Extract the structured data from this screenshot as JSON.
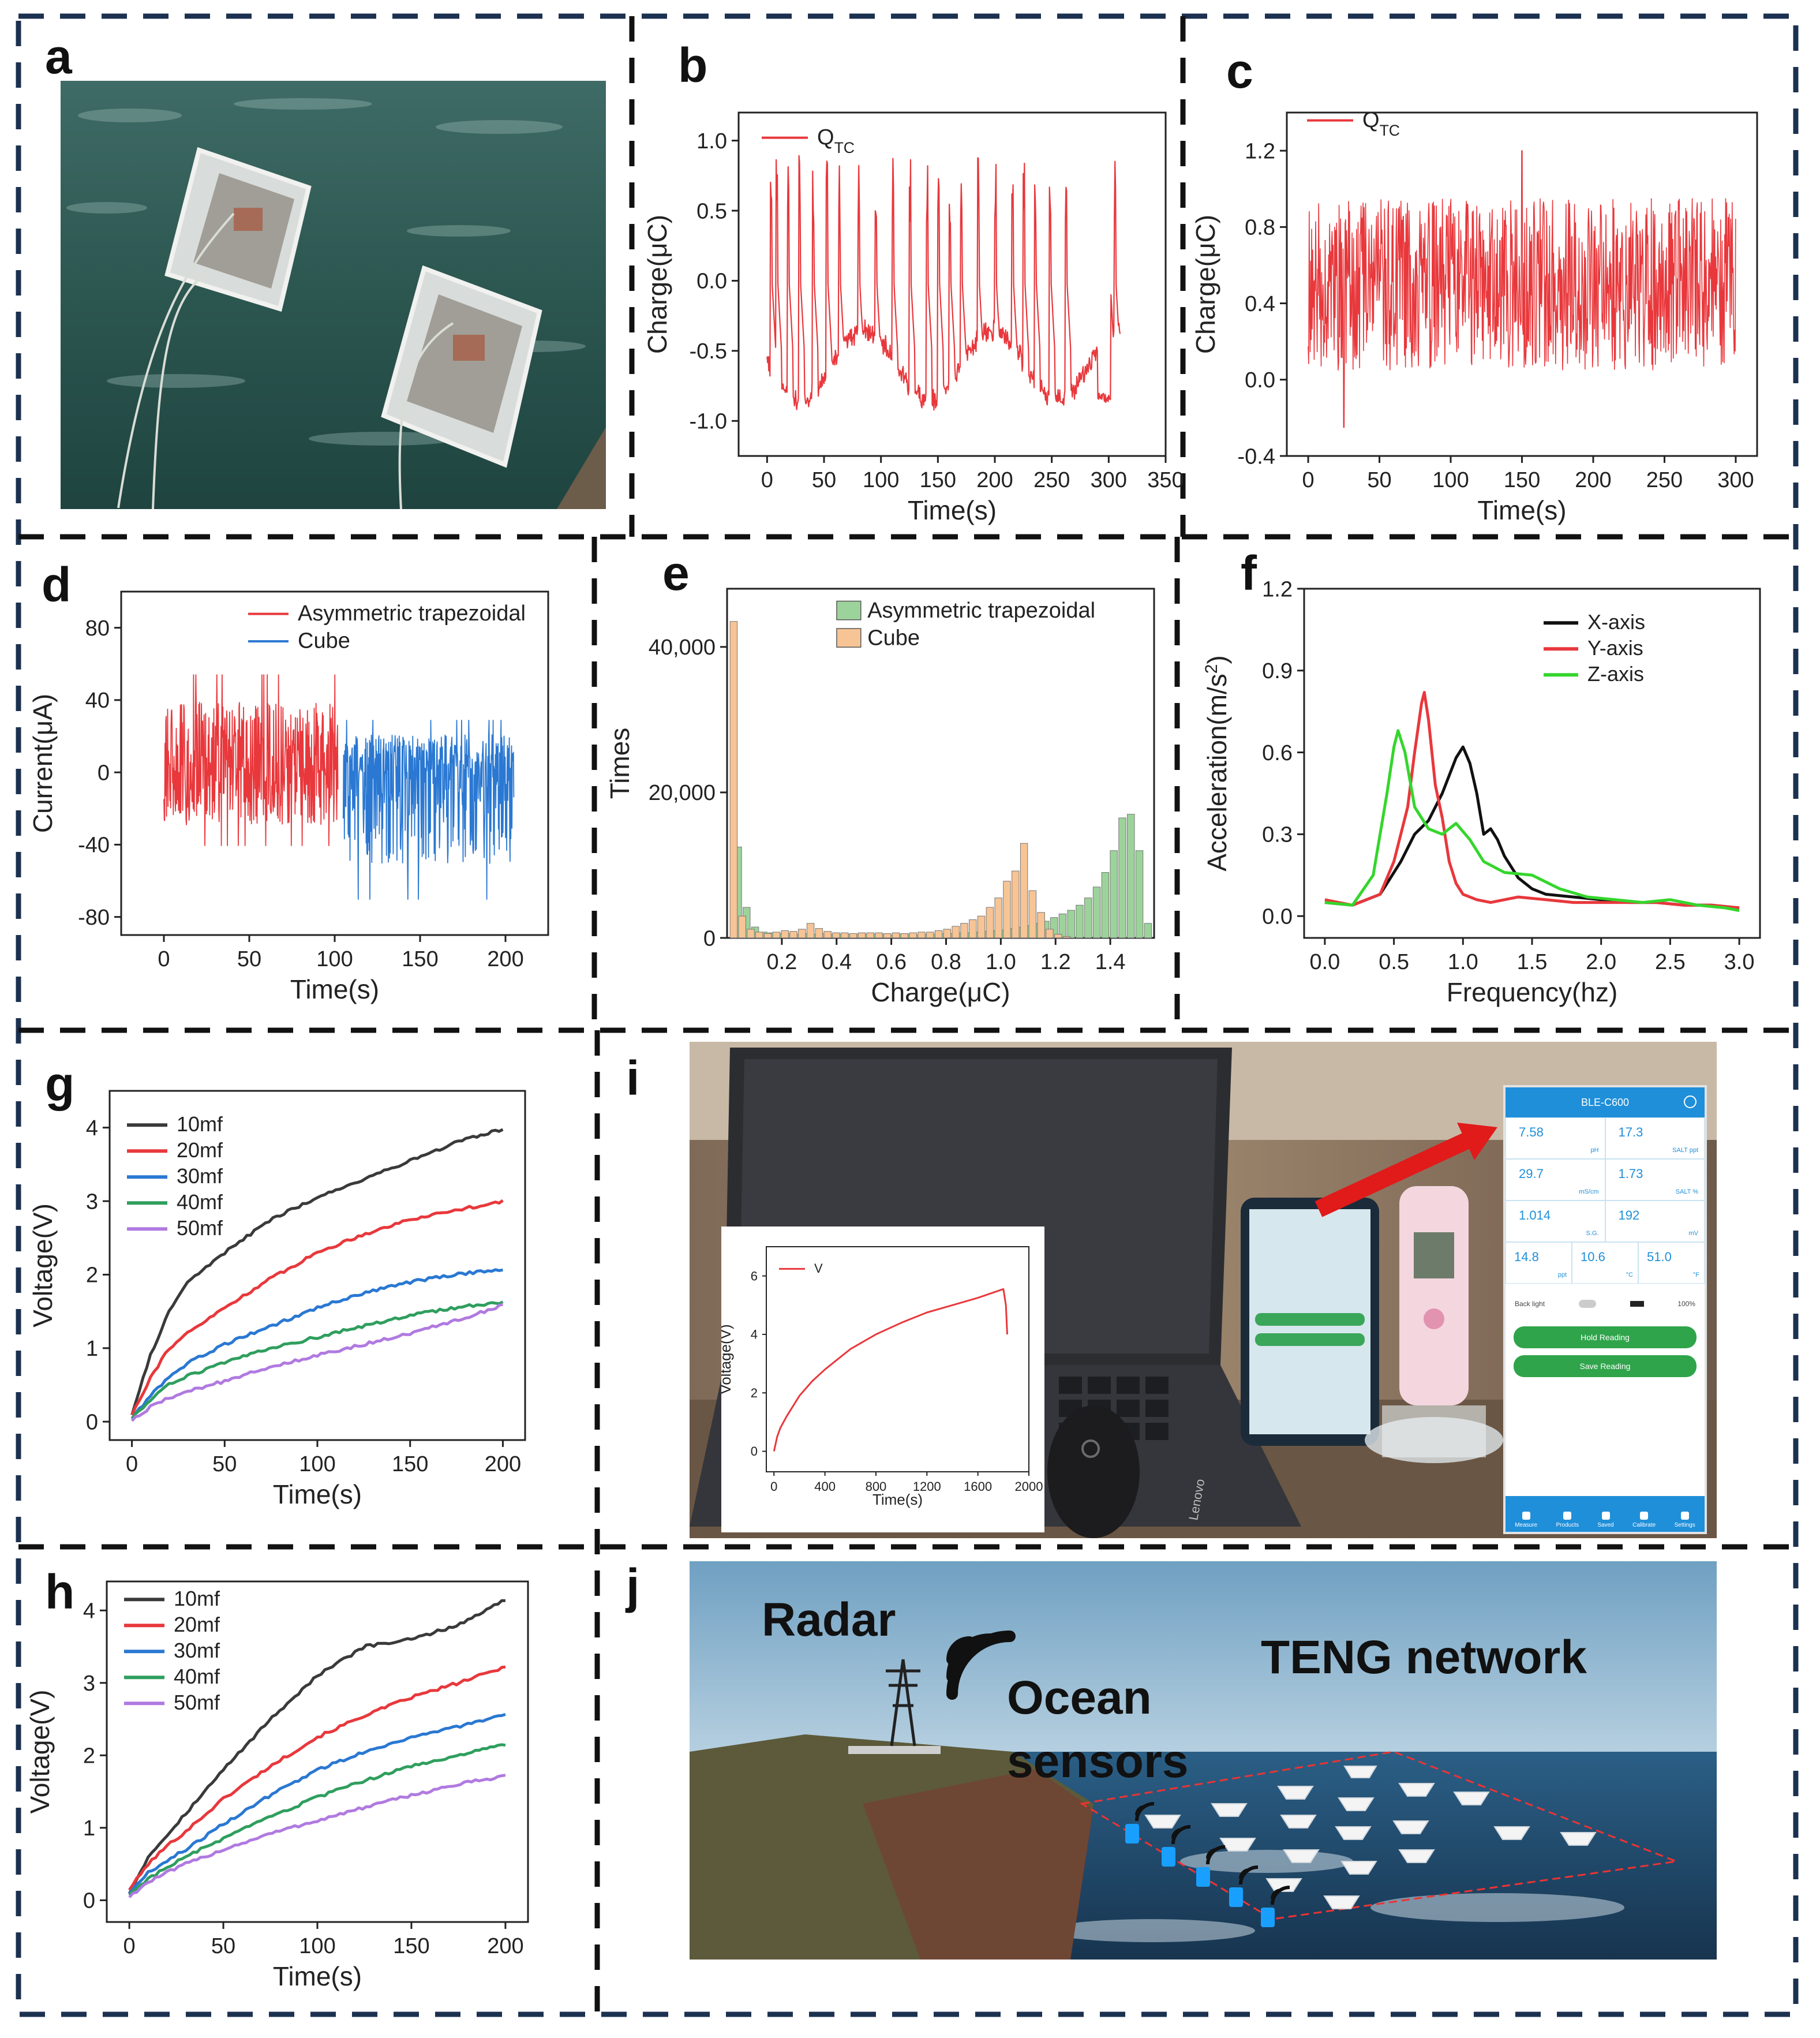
{
  "colors": {
    "frame": "#1c3150",
    "divider": "#111111",
    "red": "#e8383c",
    "blue": "#2a78d2",
    "black": "#222222",
    "green": "#34d62c",
    "darkgreen": "#2f9e5e",
    "purple": "#b07ae0",
    "hist_green": "#9cd39a",
    "hist_orange": "#f7c495"
  },
  "panels": {
    "a": {
      "label": "a"
    },
    "b": {
      "label": "b"
    },
    "c": {
      "label": "c"
    },
    "d": {
      "label": "d"
    },
    "e": {
      "label": "e"
    },
    "f": {
      "label": "f"
    },
    "g": {
      "label": "g"
    },
    "h": {
      "label": "h"
    },
    "i": {
      "label": "i"
    },
    "j": {
      "label": "j"
    }
  },
  "photo_a": {
    "description_icon": "two-teng-devices-floating-in-sea"
  },
  "photo_i": {
    "app_title": "BLE-C600",
    "readings": [
      {
        "value": "7.58",
        "unit": "pH"
      },
      {
        "value": "17.3",
        "unit": "SALT ppt"
      },
      {
        "value": "29.7",
        "unit": "mS/cm"
      },
      {
        "value": "1.73",
        "unit": "SALT %"
      },
      {
        "value": "1.014",
        "unit": "S.G."
      },
      {
        "value": "192",
        "unit": "mV"
      },
      {
        "value": "14.8",
        "unit": "ppt"
      },
      {
        "value": "10.6",
        "unit": "°C"
      },
      {
        "value": "51.0",
        "unit": "°F"
      }
    ],
    "backlight_label": "Back light",
    "battery": "100%",
    "hold_button": "Hold Reading",
    "save_button": "Save Reading",
    "tabs": [
      "Measure",
      "Products",
      "Saved",
      "Calibrate",
      "Settings"
    ],
    "laptop_brand": "Lenovo"
  },
  "photo_j": {
    "radar_label": "Radar",
    "sensors_label_1": "Ocean",
    "sensors_label_2": "sensors",
    "network_label": "TENG network"
  },
  "chart_data": [
    {
      "id": "b",
      "type": "line",
      "xlabel": "Time(s)",
      "ylabel": "Charge(μC)",
      "xlim": [
        -25,
        350
      ],
      "ylim": [
        -1.25,
        1.2
      ],
      "xticks": [
        0,
        50,
        100,
        150,
        200,
        250,
        300,
        350
      ],
      "yticks": [
        -1.0,
        -0.5,
        0.0,
        0.5,
        1.0
      ],
      "series": [
        {
          "name": "QTC",
          "color": "#e8383c",
          "description": "pulsed charge signal, baseline -0.4 to -0.9, spikes to ~0.9, 0-310 s"
        }
      ],
      "legend": "top-left"
    },
    {
      "id": "c",
      "type": "line",
      "xlabel": "Time(s)",
      "ylabel": "Charge(μC)",
      "xlim": [
        -15,
        315
      ],
      "ylim": [
        -0.4,
        1.4
      ],
      "xticks": [
        0,
        50,
        100,
        150,
        200,
        250,
        300
      ],
      "yticks": [
        -0.4,
        0.0,
        0.4,
        0.8,
        1.2
      ],
      "series": [
        {
          "name": "QTC",
          "color": "#e8383c",
          "description": "dense oscillation between ~0.0 and ~1.0, peak 1.2 near 150 s, 0-300 s"
        }
      ],
      "legend": "top-left"
    },
    {
      "id": "d",
      "type": "line",
      "xlabel": "Time(s)",
      "ylabel": "Current(μA)",
      "xlim": [
        -25,
        225
      ],
      "ylim": [
        -90,
        100
      ],
      "xticks": [
        0,
        50,
        100,
        150,
        200
      ],
      "yticks": [
        -80,
        -40,
        0,
        40,
        80
      ],
      "series": [
        {
          "name": "Asymmetric trapezoidal",
          "color": "#e8383c",
          "x_range": [
            0,
            102
          ],
          "amplitude": [
            -45,
            60
          ]
        },
        {
          "name": "Cube",
          "color": "#2a78d2",
          "x_range": [
            105,
            205
          ],
          "amplitude": [
            -78,
            32
          ]
        }
      ],
      "legend": "top-right"
    },
    {
      "id": "e",
      "type": "bar",
      "xlabel": "Charge(μC)",
      "ylabel": "Times",
      "xlim": [
        0.0,
        1.56
      ],
      "ylim": [
        0,
        48000
      ],
      "xticks": [
        0.2,
        0.4,
        0.6,
        0.8,
        1.0,
        1.2,
        1.4
      ],
      "xtick_labels": [
        "0.2",
        "0.4",
        "0.6",
        "0.8",
        "1.0",
        "1.2",
        "1.4"
      ],
      "yticks": [
        0,
        20000,
        40000
      ],
      "ytick_labels": [
        "0",
        "20,000",
        "40,000"
      ],
      "bin_width": 0.0312,
      "series": [
        {
          "name": "Asymmetric trapezoidal",
          "color": "#9cd39a",
          "bins": [
            0.04,
            0.0712,
            0.1024,
            0.1336,
            0.1648,
            0.196,
            0.2272,
            0.2584,
            0.2896,
            0.3208,
            0.352,
            0.3832,
            0.4144,
            0.4456,
            0.4768,
            0.508,
            0.5392,
            0.5704,
            0.6016,
            0.6328,
            0.664,
            0.6952,
            0.7264,
            0.7576,
            0.7888,
            0.82,
            0.8512,
            0.8824,
            0.9136,
            0.9448,
            0.976,
            1.0072,
            1.0384,
            1.0696,
            1.1008,
            1.132,
            1.1632,
            1.1944,
            1.2256,
            1.2568,
            1.288,
            1.3192,
            1.3504,
            1.3816,
            1.4128,
            1.444,
            1.4752,
            1.5064,
            1.5376
          ],
          "values": [
            12500,
            4200,
            1500,
            800,
            700,
            600,
            600,
            500,
            600,
            500,
            600,
            500,
            500,
            500,
            500,
            500,
            500,
            500,
            400,
            500,
            500,
            400,
            500,
            500,
            600,
            600,
            700,
            700,
            800,
            900,
            1000,
            1100,
            1300,
            1500,
            1700,
            2000,
            2300,
            2800,
            3300,
            3800,
            4500,
            5500,
            7000,
            9000,
            12000,
            16500,
            17000,
            12000,
            2000
          ]
        },
        {
          "name": "Cube",
          "color": "#f7c495",
          "bins": [
            0.024,
            0.0552,
            0.0864,
            0.1176,
            0.1488,
            0.18,
            0.2112,
            0.2424,
            0.2736,
            0.3048,
            0.336,
            0.3672,
            0.3984,
            0.4296,
            0.4608,
            0.492,
            0.5232,
            0.5544,
            0.5856,
            0.6168,
            0.648,
            0.6792,
            0.7104,
            0.7416,
            0.7728,
            0.804,
            0.8352,
            0.8664,
            0.8976,
            0.9288,
            0.96,
            0.9912,
            1.0224,
            1.0536,
            1.0848,
            1.116,
            1.1472,
            1.1784,
            1.2096,
            1.2408
          ],
          "values": [
            43500,
            3000,
            1200,
            800,
            600,
            800,
            1000,
            900,
            1200,
            2000,
            1300,
            900,
            700,
            700,
            600,
            700,
            700,
            700,
            600,
            700,
            600,
            700,
            800,
            800,
            1000,
            1200,
            1600,
            2000,
            2500,
            3000,
            4200,
            5500,
            7800,
            9200,
            13000,
            6500,
            3500,
            1200,
            500,
            200
          ]
        }
      ],
      "legend": "top-right"
    },
    {
      "id": "f",
      "type": "line",
      "xlabel": "Frequency(hz)",
      "ylabel": "Acceleration(m/s2)",
      "xlim": [
        -0.15,
        3.15
      ],
      "ylim": [
        -0.08,
        1.2
      ],
      "xticks": [
        0.0,
        0.5,
        1.0,
        1.5,
        2.0,
        2.5,
        3.0
      ],
      "yticks": [
        0.0,
        0.3,
        0.6,
        0.9,
        1.2
      ],
      "series": [
        {
          "name": "X-axis",
          "color": "#111111",
          "x": [
            0.0,
            0.2,
            0.4,
            0.55,
            0.65,
            0.75,
            0.85,
            0.95,
            1.0,
            1.05,
            1.1,
            1.15,
            1.2,
            1.25,
            1.3,
            1.4,
            1.5,
            1.6,
            1.8,
            2.0,
            2.2,
            2.4,
            2.6,
            2.8,
            3.0
          ],
          "y": [
            0.05,
            0.04,
            0.08,
            0.2,
            0.3,
            0.35,
            0.45,
            0.58,
            0.62,
            0.56,
            0.45,
            0.3,
            0.32,
            0.28,
            0.22,
            0.14,
            0.1,
            0.08,
            0.07,
            0.06,
            0.05,
            0.05,
            0.04,
            0.04,
            0.03
          ]
        },
        {
          "name": "Y-axis",
          "color": "#e8383c",
          "x": [
            0.0,
            0.2,
            0.4,
            0.5,
            0.6,
            0.65,
            0.7,
            0.72,
            0.75,
            0.8,
            0.85,
            0.9,
            0.95,
            1.0,
            1.1,
            1.2,
            1.4,
            1.6,
            1.8,
            2.0,
            2.2,
            2.4,
            2.6,
            2.8,
            3.0
          ],
          "y": [
            0.06,
            0.04,
            0.08,
            0.2,
            0.4,
            0.6,
            0.78,
            0.82,
            0.72,
            0.48,
            0.36,
            0.2,
            0.12,
            0.08,
            0.06,
            0.05,
            0.07,
            0.06,
            0.05,
            0.05,
            0.05,
            0.05,
            0.04,
            0.04,
            0.03
          ]
        },
        {
          "name": "Z-axis",
          "color": "#34d62c",
          "x": [
            0.0,
            0.2,
            0.35,
            0.45,
            0.5,
            0.53,
            0.58,
            0.65,
            0.75,
            0.85,
            0.95,
            1.05,
            1.15,
            1.3,
            1.5,
            1.7,
            1.9,
            2.1,
            2.3,
            2.5,
            2.7,
            2.9,
            3.0
          ],
          "y": [
            0.05,
            0.04,
            0.15,
            0.45,
            0.62,
            0.68,
            0.6,
            0.4,
            0.32,
            0.3,
            0.34,
            0.28,
            0.2,
            0.16,
            0.15,
            0.1,
            0.07,
            0.06,
            0.05,
            0.06,
            0.04,
            0.03,
            0.02
          ]
        }
      ],
      "legend": "top-right"
    },
    {
      "id": "g",
      "type": "line",
      "xlabel": "Time(s)",
      "ylabel": "Voltage(V)",
      "xlim": [
        -12,
        212
      ],
      "ylim": [
        -0.25,
        4.5
      ],
      "xticks": [
        0,
        50,
        100,
        150,
        200
      ],
      "yticks": [
        0,
        1,
        2,
        3,
        4
      ],
      "series": [
        {
          "name": "10mf",
          "color": "#3a3a3a",
          "x": [
            0,
            10,
            20,
            30,
            50,
            75,
            100,
            125,
            150,
            175,
            200
          ],
          "y": [
            0.1,
            0.9,
            1.5,
            1.9,
            2.3,
            2.75,
            3.05,
            3.3,
            3.55,
            3.8,
            3.98
          ]
        },
        {
          "name": "20mf",
          "color": "#e8383c",
          "x": [
            0,
            10,
            20,
            30,
            50,
            75,
            100,
            125,
            150,
            175,
            200
          ],
          "y": [
            0.1,
            0.6,
            1.0,
            1.2,
            1.55,
            1.95,
            2.3,
            2.55,
            2.75,
            2.88,
            3.0
          ]
        },
        {
          "name": "30mf",
          "color": "#2a78d2",
          "x": [
            0,
            10,
            20,
            30,
            50,
            75,
            100,
            125,
            150,
            175,
            200
          ],
          "y": [
            0.05,
            0.35,
            0.6,
            0.8,
            1.05,
            1.3,
            1.55,
            1.75,
            1.9,
            2.0,
            2.08
          ]
        },
        {
          "name": "40mf",
          "color": "#2f9e5e",
          "x": [
            0,
            10,
            20,
            30,
            50,
            75,
            100,
            125,
            150,
            175,
            200
          ],
          "y": [
            0.05,
            0.3,
            0.5,
            0.62,
            0.8,
            1.0,
            1.15,
            1.3,
            1.45,
            1.55,
            1.63
          ]
        },
        {
          "name": "50mf",
          "color": "#b07ae0",
          "x": [
            0,
            10,
            20,
            30,
            50,
            75,
            100,
            125,
            150,
            175,
            200
          ],
          "y": [
            0.02,
            0.2,
            0.32,
            0.42,
            0.55,
            0.75,
            0.9,
            1.05,
            1.2,
            1.38,
            1.58
          ]
        }
      ],
      "legend": "top-left"
    },
    {
      "id": "h",
      "type": "line",
      "xlabel": "Time(s)",
      "ylabel": "Voltage(V)",
      "xlim": [
        -12,
        212
      ],
      "ylim": [
        -0.3,
        4.4
      ],
      "xticks": [
        0,
        50,
        100,
        150,
        200
      ],
      "yticks": [
        0,
        1,
        2,
        3,
        4
      ],
      "series": [
        {
          "name": "10mf",
          "color": "#3a3a3a",
          "x": [
            0,
            10,
            20,
            30,
            50,
            75,
            100,
            125,
            150,
            175,
            200
          ],
          "y": [
            0.1,
            0.6,
            0.9,
            1.2,
            1.8,
            2.5,
            3.1,
            3.5,
            3.6,
            3.8,
            4.15
          ]
        },
        {
          "name": "20mf",
          "color": "#e8383c",
          "x": [
            0,
            10,
            20,
            30,
            50,
            75,
            100,
            125,
            150,
            175,
            200
          ],
          "y": [
            0.15,
            0.5,
            0.75,
            0.95,
            1.4,
            1.85,
            2.25,
            2.55,
            2.8,
            3.0,
            3.22
          ]
        },
        {
          "name": "30mf",
          "color": "#2a78d2",
          "x": [
            0,
            10,
            20,
            30,
            50,
            75,
            100,
            125,
            150,
            175,
            200
          ],
          "y": [
            0.1,
            0.38,
            0.55,
            0.7,
            1.05,
            1.45,
            1.8,
            2.05,
            2.25,
            2.4,
            2.55
          ]
        },
        {
          "name": "40mf",
          "color": "#2f9e5e",
          "x": [
            0,
            10,
            20,
            30,
            50,
            75,
            100,
            125,
            150,
            175,
            200
          ],
          "y": [
            0.08,
            0.3,
            0.45,
            0.6,
            0.85,
            1.15,
            1.42,
            1.65,
            1.85,
            2.0,
            2.15
          ]
        },
        {
          "name": "50mf",
          "color": "#b07ae0",
          "x": [
            0,
            10,
            20,
            30,
            50,
            75,
            100,
            125,
            150,
            175,
            200
          ],
          "y": [
            0.05,
            0.25,
            0.38,
            0.5,
            0.7,
            0.92,
            1.1,
            1.28,
            1.45,
            1.6,
            1.72
          ]
        }
      ],
      "legend": "top-left"
    },
    {
      "id": "i_inset",
      "type": "line",
      "xlabel": "Time(s)",
      "ylabel": "Voltage(V)",
      "xlim": [
        -60,
        2000
      ],
      "ylim": [
        -0.7,
        7
      ],
      "xticks": [
        0,
        400,
        800,
        1200,
        1600,
        2000
      ],
      "yticks": [
        0,
        2,
        4,
        6
      ],
      "series": [
        {
          "name": "V",
          "color": "#e8383c",
          "x": [
            0,
            25,
            50,
            100,
            200,
            300,
            400,
            600,
            800,
            1000,
            1200,
            1400,
            1600,
            1800,
            1820,
            1830
          ],
          "y": [
            0.0,
            0.5,
            0.8,
            1.2,
            1.9,
            2.4,
            2.8,
            3.5,
            4.0,
            4.4,
            4.75,
            5.0,
            5.25,
            5.55,
            5.0,
            4.0
          ]
        }
      ],
      "legend": "top-left"
    }
  ]
}
